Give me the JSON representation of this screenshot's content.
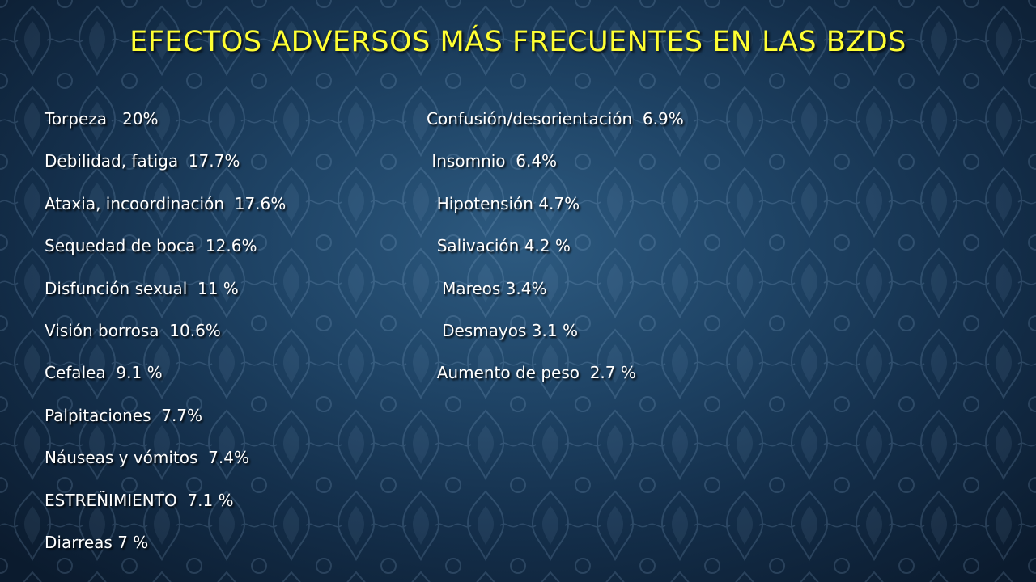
{
  "slide": {
    "title": "EFECTOS ADVERSOS MÁS FRECUENTES EN LAS BZDS",
    "left_column": [
      "Torpeza   20%",
      "Debilidad, fatiga  17.7%",
      "Ataxia, incoordinación  17.6%",
      "Sequedad de boca  12.6%",
      "Disfunción sexual  11 %",
      "Visión borrosa  10.6%",
      "Cefalea  9.1 %",
      "Palpitaciones  7.7%",
      "Náuseas y vómitos  7.4%",
      "ESTREÑIMIENTO  7.1 %",
      "Diarreas 7 %"
    ],
    "right_column": [
      "Confusión/desorientación  6.9%",
      " Insomnio  6.4%",
      "  Hipotensión 4.7%",
      "  Salivación 4.2 %",
      "   Mareos 3.4%",
      "   Desmayos 3.1 %",
      "  Aumento de peso  2.7 %"
    ]
  },
  "colors": {
    "title": "#ffff33",
    "body_text": "#ffffff",
    "background": "#1f4466"
  }
}
